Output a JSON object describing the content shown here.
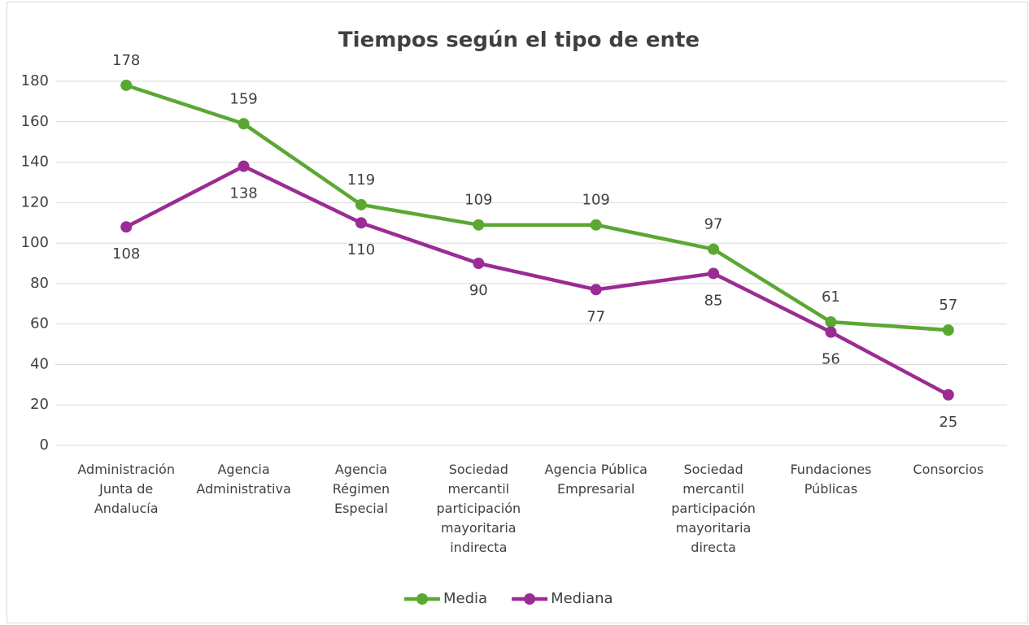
{
  "chart_data": {
    "type": "line",
    "title": "Tiempos según el tipo de ente",
    "categories": [
      "Administración Junta de Andalucía",
      "Agencia Administrativa",
      "Agencia Régimen Especial",
      "Sociedad mercantil participación mayoritaria indirecta",
      "Agencia Pública Empresarial",
      "Sociedad mercantil participación mayoritaria directa",
      "Fundaciones Públicas",
      "Consorcios"
    ],
    "series": [
      {
        "name": "Media",
        "color": "#5aa832",
        "values": [
          178,
          159,
          119,
          109,
          109,
          97,
          61,
          57
        ]
      },
      {
        "name": "Mediana",
        "color": "#9b2b95",
        "values": [
          108,
          138,
          110,
          90,
          77,
          85,
          56,
          25
        ]
      }
    ],
    "ylim": [
      0,
      180
    ],
    "yticks": [
      0,
      20,
      40,
      60,
      80,
      100,
      120,
      140,
      160,
      180
    ],
    "grid": true,
    "legend": "bottom"
  }
}
